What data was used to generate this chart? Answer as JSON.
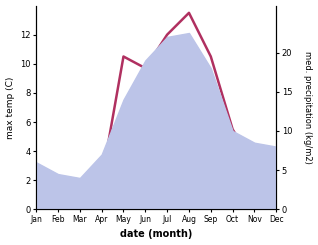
{
  "months": [
    "Jan",
    "Feb",
    "Mar",
    "Apr",
    "May",
    "Jun",
    "Jul",
    "Aug",
    "Sep",
    "Oct",
    "Nov",
    "Dec"
  ],
  "temp": [
    1.0,
    0.5,
    0.3,
    2.0,
    10.5,
    9.7,
    12.0,
    13.5,
    10.5,
    5.5,
    3.0,
    1.5
  ],
  "precip": [
    6.0,
    4.5,
    4.0,
    7.0,
    14.0,
    19.0,
    22.0,
    22.5,
    18.0,
    10.0,
    8.5,
    8.0
  ],
  "temp_color": "#b03060",
  "precip_fill_color": "#bcc4e8",
  "temp_ylim": [
    0,
    14
  ],
  "precip_ylim": [
    0,
    26.0
  ],
  "ylabel_left": "max temp (C)",
  "ylabel_right": "med. precipitation (kg/m2)",
  "xlabel": "date (month)",
  "left_yticks": [
    0,
    2,
    4,
    6,
    8,
    10,
    12
  ],
  "right_yticks": [
    0,
    5,
    10,
    15,
    20
  ],
  "background_color": "#ffffff"
}
